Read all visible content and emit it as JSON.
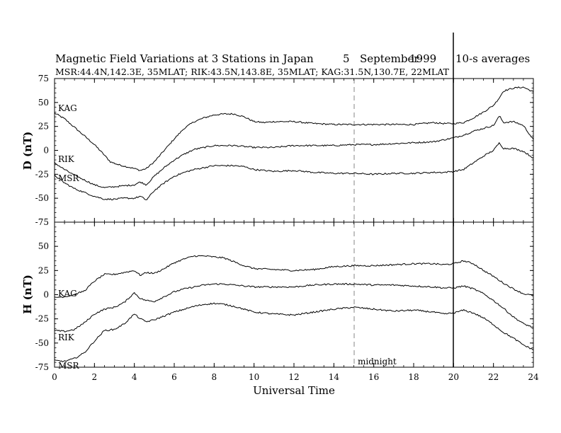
{
  "title": {
    "main": "Magnetic Field Variations at 3 Stations in Japan",
    "day": "5",
    "month": "September",
    "year": "1999",
    "averaging": "10-s averages"
  },
  "subtitle": "MSR:44.4N,142.3E, 35MLAT;   RIK:43.5N,143.8E, 35MLAT;   KAG:31.5N,130.7E, 22MLAT",
  "xlabel": "Universal Time",
  "midnight_label": "midnight",
  "chart_data": [
    {
      "type": "line",
      "panel": "top",
      "ylabel": "D (nT)",
      "xlim": [
        0,
        24
      ],
      "ylim": [
        -75,
        75
      ],
      "xticks": [
        0,
        2,
        4,
        6,
        8,
        10,
        12,
        14,
        16,
        18,
        20,
        22,
        24
      ],
      "yticks": [
        75,
        50,
        25,
        0,
        -25,
        -50,
        -75
      ],
      "grid": false,
      "series": [
        {
          "name": "KAG",
          "x": [
            0,
            0.5,
            1,
            1.5,
            2,
            2.5,
            2.8,
            3.2,
            3.6,
            4,
            4.3,
            4.6,
            5,
            5.5,
            6,
            6.5,
            7,
            7.5,
            8,
            8.5,
            9,
            9.5,
            10,
            10.5,
            11,
            12,
            13,
            14,
            15,
            16,
            17,
            18,
            19,
            19.5,
            20,
            20.5,
            21,
            21.5,
            22,
            22.3,
            22.5,
            23,
            23.5,
            24
          ],
          "values": [
            39,
            33,
            24,
            15,
            6,
            -5,
            -12,
            -15,
            -17,
            -19,
            -21,
            -19,
            -12,
            0,
            12,
            23,
            30,
            34,
            37,
            38,
            38,
            35,
            30,
            29,
            30,
            30,
            28,
            27,
            27,
            27,
            27,
            27,
            29,
            28,
            28,
            29,
            34,
            40,
            47,
            55,
            62,
            65,
            66,
            61
          ]
        },
        {
          "name": "RIK",
          "x": [
            0,
            0.5,
            1,
            1.5,
            2,
            2.5,
            3,
            3.5,
            4,
            4.3,
            4.6,
            5,
            5.5,
            6,
            6.5,
            7,
            7.5,
            8,
            8.5,
            9,
            9.5,
            10,
            11,
            12,
            13,
            14,
            15,
            16,
            17,
            18,
            19,
            19.5,
            20,
            20.5,
            21,
            21.5,
            22,
            22.3,
            22.5,
            23,
            23.5,
            24
          ],
          "values": [
            -13,
            -20,
            -26,
            -31,
            -36,
            -39,
            -38,
            -37,
            -36,
            -33,
            -36,
            -27,
            -18,
            -10,
            -4,
            1,
            3,
            5,
            5,
            5,
            4,
            3,
            3,
            5,
            5,
            5,
            6,
            6,
            7,
            8,
            9,
            11,
            13,
            16,
            20,
            23,
            26,
            36,
            29,
            30,
            26,
            11
          ]
        },
        {
          "name": "MSR",
          "x": [
            0,
            0.5,
            1,
            1.5,
            2,
            2.5,
            3,
            3.5,
            4,
            4.3,
            4.6,
            5,
            5.5,
            6,
            6.5,
            7,
            7.5,
            8,
            8.5,
            9,
            9.5,
            10,
            11,
            12,
            13,
            14,
            15,
            16,
            17,
            18,
            19,
            19.5,
            20,
            20.5,
            21,
            21.5,
            22,
            22.3,
            22.5,
            23,
            23.5,
            24
          ],
          "values": [
            -26,
            -34,
            -40,
            -44,
            -48,
            -51,
            -51,
            -50,
            -50,
            -48,
            -52,
            -42,
            -34,
            -27,
            -23,
            -20,
            -18,
            -16,
            -16,
            -16,
            -17,
            -20,
            -22,
            -21,
            -23,
            -24,
            -24,
            -25,
            -24,
            -24,
            -23,
            -23,
            -22,
            -20,
            -13,
            -6,
            0,
            8,
            2,
            2,
            -1,
            -8
          ]
        }
      ]
    },
    {
      "type": "line",
      "panel": "bottom",
      "ylabel": "H (nT)",
      "xlim": [
        0,
        24
      ],
      "ylim": [
        -75,
        75
      ],
      "xticks": [
        0,
        2,
        4,
        6,
        8,
        10,
        12,
        14,
        16,
        18,
        20,
        22,
        24
      ],
      "yticks": [
        75,
        50,
        25,
        0,
        -25,
        -50,
        -75
      ],
      "grid": false,
      "series": [
        {
          "name": "KAG",
          "x": [
            0,
            0.5,
            1,
            1.5,
            2,
            2.5,
            3,
            3.5,
            4,
            4.3,
            4.6,
            5,
            5.5,
            6,
            6.5,
            7,
            7.5,
            8,
            8.5,
            9,
            9.5,
            10,
            11,
            12,
            13,
            14,
            15,
            16,
            17,
            18,
            19,
            19.5,
            20,
            20.5,
            21,
            21.5,
            22,
            22.5,
            23,
            23.5,
            24
          ],
          "values": [
            -3,
            -2,
            0,
            4,
            14,
            21,
            21,
            23,
            25,
            20,
            23,
            22,
            27,
            33,
            37,
            40,
            40,
            39,
            38,
            34,
            30,
            27,
            26,
            25,
            26,
            29,
            30,
            30,
            31,
            32,
            32,
            31,
            32,
            35,
            32,
            25,
            19,
            12,
            6,
            1,
            -1
          ]
        },
        {
          "name": "RIK",
          "x": [
            0,
            0.5,
            1,
            1.5,
            2,
            2.5,
            3,
            3.5,
            4,
            4.3,
            4.6,
            5,
            5.5,
            6,
            6.5,
            7,
            7.5,
            8,
            8.5,
            9,
            9.5,
            10,
            11,
            12,
            13,
            14,
            15,
            16,
            17,
            18,
            19,
            19.5,
            20,
            20.5,
            21,
            21.5,
            22,
            22.5,
            23,
            23.5,
            24
          ],
          "values": [
            -37,
            -38,
            -36,
            -29,
            -20,
            -15,
            -13,
            -8,
            2,
            -4,
            -6,
            -7,
            -2,
            3,
            6,
            8,
            10,
            11,
            11,
            10,
            9,
            8,
            8,
            8,
            10,
            11,
            11,
            10,
            10,
            9,
            8,
            7,
            7,
            9,
            6,
            1,
            -6,
            -14,
            -23,
            -30,
            -34
          ]
        },
        {
          "name": "MSR",
          "x": [
            0,
            0.5,
            1,
            1.5,
            2,
            2.5,
            3,
            3.5,
            4,
            4.3,
            4.6,
            5,
            5.5,
            6,
            6.5,
            7,
            7.5,
            8,
            8.5,
            9,
            9.5,
            10,
            11,
            12,
            13,
            14,
            15,
            16,
            17,
            18,
            19,
            19.5,
            20,
            20.5,
            21,
            21.5,
            22,
            22.5,
            23,
            23.5,
            24
          ],
          "values": [
            -68,
            -69,
            -66,
            -60,
            -48,
            -37,
            -36,
            -30,
            -20,
            -25,
            -28,
            -26,
            -22,
            -18,
            -15,
            -12,
            -10,
            -9,
            -10,
            -12,
            -15,
            -18,
            -20,
            -21,
            -18,
            -15,
            -13,
            -15,
            -17,
            -16,
            -18,
            -20,
            -19,
            -16,
            -19,
            -24,
            -31,
            -39,
            -45,
            -52,
            -57
          ]
        }
      ]
    }
  ]
}
